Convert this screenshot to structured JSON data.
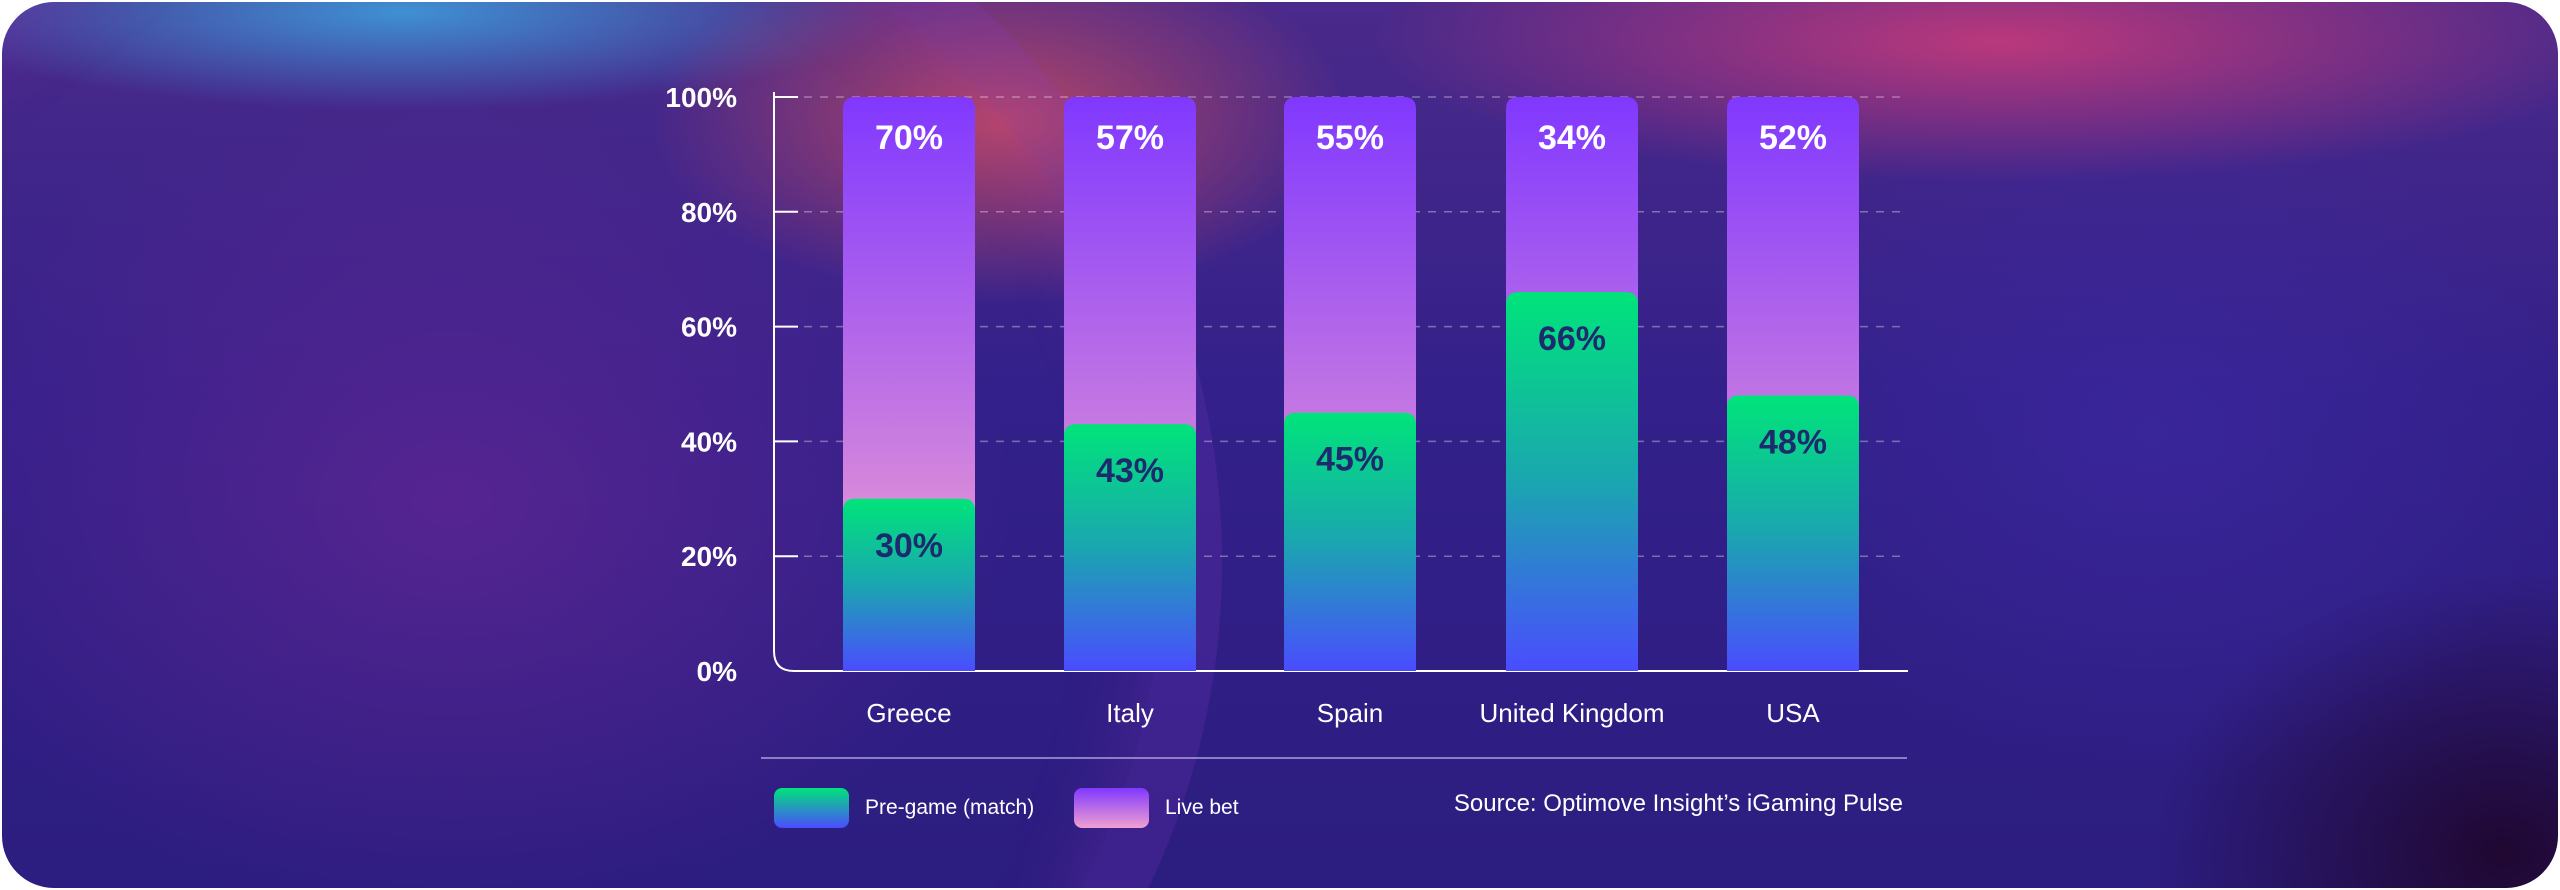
{
  "chart_data": {
    "type": "bar",
    "stacked": true,
    "categories": [
      "Greece",
      "Italy",
      "Spain",
      "United Kingdom",
      "USA"
    ],
    "series": [
      {
        "name": "Pre-game (match)",
        "values": [
          30,
          43,
          45,
          66,
          48
        ],
        "labels": [
          "30%",
          "43%",
          "45%",
          "66%",
          "48%"
        ],
        "color_top": "#00e47a",
        "color_bottom": "#4a4cff"
      },
      {
        "name": "Live bet",
        "values": [
          70,
          57,
          55,
          34,
          52
        ],
        "labels": [
          "70%",
          "57%",
          "55%",
          "34%",
          "52%"
        ],
        "color_top": "#8038ff",
        "color_bottom": "#f0a0d0"
      }
    ],
    "ylim": [
      0,
      100
    ],
    "yticks": [
      "0%",
      "20%",
      "40%",
      "60%",
      "80%",
      "100%"
    ],
    "grid": true,
    "legend_position": "bottom-left"
  },
  "source": "Source: Optimove Insight’s iGaming Pulse"
}
